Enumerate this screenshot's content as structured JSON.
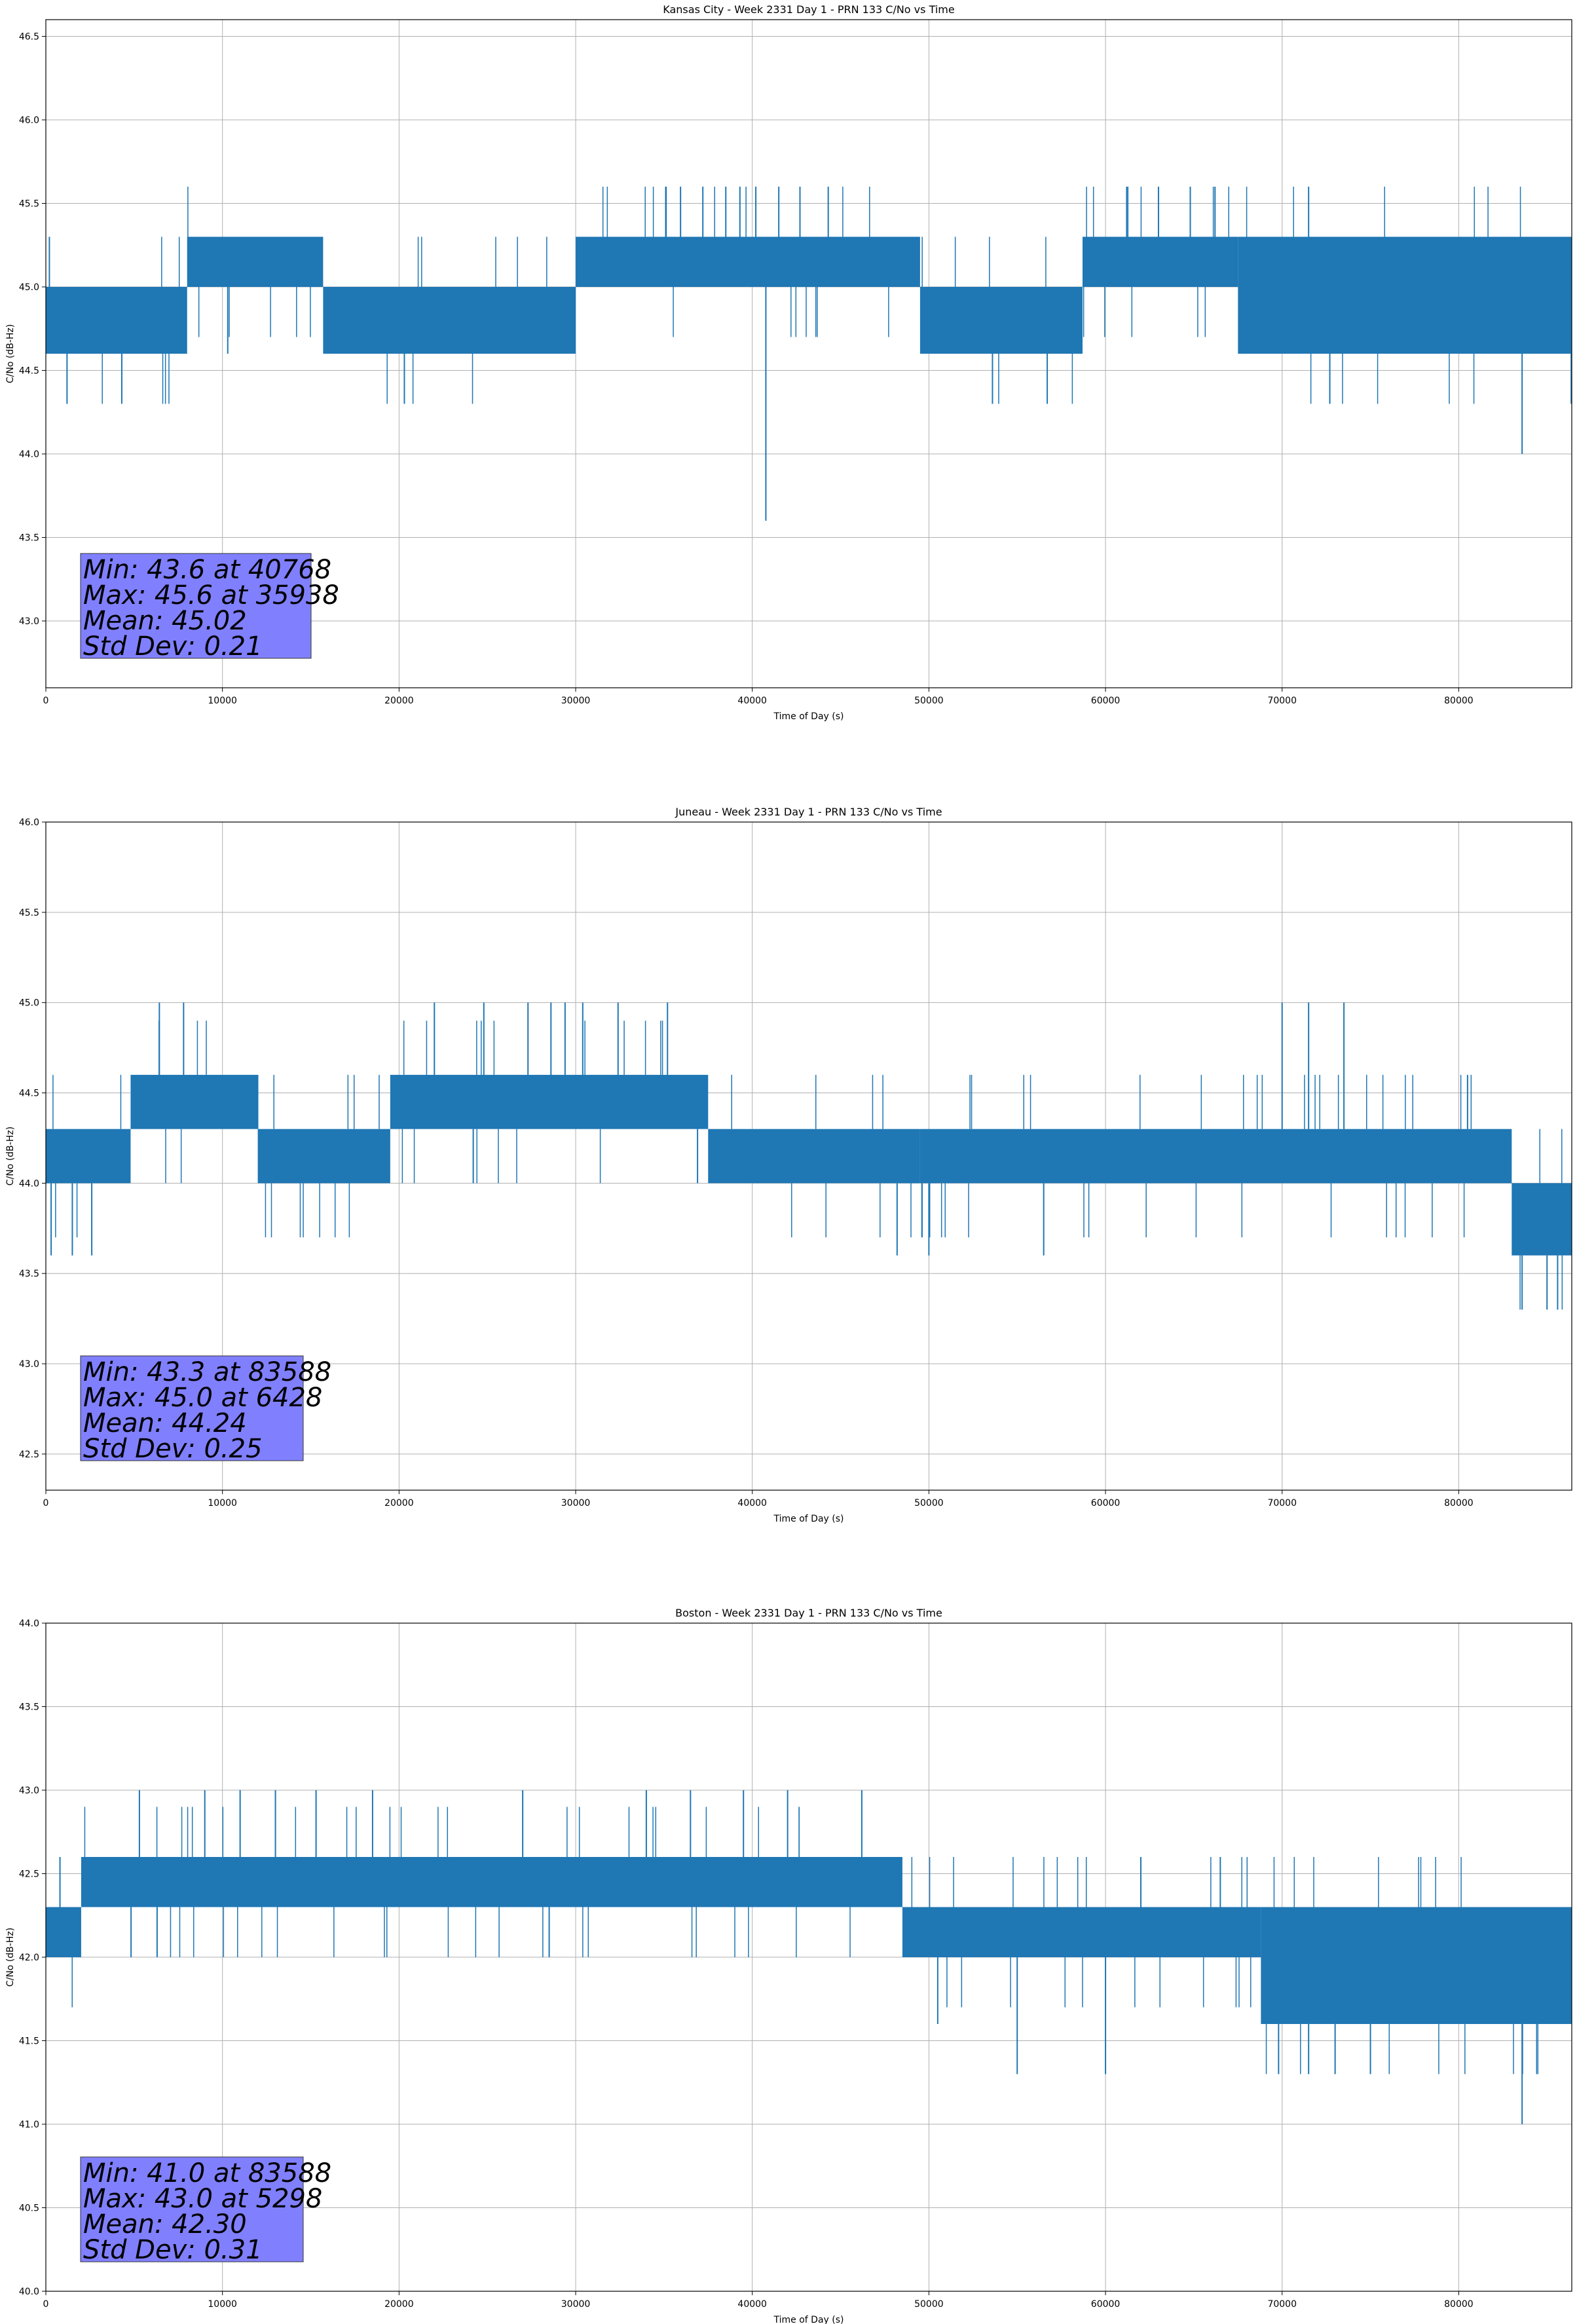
{
  "figure": {
    "background": "#ffffff",
    "line_color": "#1f77b4",
    "grid_color": "#b0b0b0",
    "stats_box_color": "#8080ff"
  },
  "chart_data": [
    {
      "type": "line",
      "title": "Kansas City - Week 2331 Day 1 - PRN 133 C/No vs Time",
      "xlabel": "Time of Day (s)",
      "ylabel": "C/No (dB-Hz)",
      "xlim": [
        0,
        86400
      ],
      "ylim": [
        42.6,
        46.6
      ],
      "xticks": [
        0,
        10000,
        20000,
        30000,
        40000,
        50000,
        60000,
        70000,
        80000
      ],
      "xtick_labels": [
        "0",
        "10000",
        "20000",
        "30000",
        "40000",
        "50000",
        "60000",
        "70000",
        "80000"
      ],
      "yticks": [
        43.0,
        43.5,
        44.0,
        44.5,
        45.0,
        45.5,
        46.0,
        46.5
      ],
      "ytick_labels": [
        "43.0",
        "43.5",
        "44.0",
        "44.5",
        "45.0",
        "45.5",
        "46.0",
        "46.5"
      ],
      "grid": true,
      "series": [
        {
          "segments": [
            {
              "x": [
                0,
                8000
              ],
              "lo": 44.6,
              "hi": 45.0
            },
            {
              "x": [
                8000,
                15700
              ],
              "lo": 45.0,
              "hi": 45.3
            },
            {
              "x": [
                15700,
                30000
              ],
              "lo": 44.6,
              "hi": 45.0
            },
            {
              "x": [
                30000,
                49500
              ],
              "lo": 45.0,
              "hi": 45.3
            },
            {
              "x": [
                49500,
                58700
              ],
              "lo": 44.6,
              "hi": 45.0
            },
            {
              "x": [
                58700,
                67500
              ],
              "lo": 45.0,
              "hi": 45.3
            },
            {
              "x": [
                67500,
                86400
              ],
              "lo": 44.6,
              "hi": 45.3
            }
          ],
          "spikes": [
            {
              "x": 200,
              "y": 45.3
            },
            {
              "x": 1200,
              "y": 44.3
            },
            {
              "x": 4300,
              "y": 44.3
            },
            {
              "x": 10300,
              "y": 44.6
            },
            {
              "x": 20300,
              "y": 44.3
            },
            {
              "x": 35938,
              "y": 45.6
            },
            {
              "x": 37200,
              "y": 45.6
            },
            {
              "x": 38500,
              "y": 45.6
            },
            {
              "x": 39300,
              "y": 45.6
            },
            {
              "x": 40200,
              "y": 45.6
            },
            {
              "x": 40768,
              "y": 43.6
            },
            {
              "x": 41500,
              "y": 45.6
            },
            {
              "x": 42700,
              "y": 45.6
            },
            {
              "x": 44300,
              "y": 45.6
            },
            {
              "x": 53600,
              "y": 44.3
            },
            {
              "x": 56700,
              "y": 44.3
            },
            {
              "x": 61200,
              "y": 45.6
            },
            {
              "x": 63000,
              "y": 45.6
            },
            {
              "x": 64800,
              "y": 45.6
            },
            {
              "x": 66200,
              "y": 45.6
            },
            {
              "x": 71500,
              "y": 45.6
            },
            {
              "x": 72700,
              "y": 44.3
            },
            {
              "x": 83588,
              "y": 44.0
            }
          ]
        }
      ],
      "stats": [
        "Min: 43.6 at 40768",
        "Max: 45.6 at 35938",
        "Mean: 45.02",
        "Std Dev: 0.21"
      ]
    },
    {
      "type": "line",
      "title": "Juneau - Week 2331 Day 1 - PRN 133 C/No vs Time",
      "xlabel": "Time of Day (s)",
      "ylabel": "C/No (dB-Hz)",
      "xlim": [
        0,
        86400
      ],
      "ylim": [
        42.3,
        46.0
      ],
      "xticks": [
        0,
        10000,
        20000,
        30000,
        40000,
        50000,
        60000,
        70000,
        80000
      ],
      "xtick_labels": [
        "0",
        "10000",
        "20000",
        "30000",
        "40000",
        "50000",
        "60000",
        "70000",
        "80000"
      ],
      "yticks": [
        42.5,
        43.0,
        43.5,
        44.0,
        44.5,
        45.0,
        45.5,
        46.0
      ],
      "ytick_labels": [
        "42.5",
        "43.0",
        "43.5",
        "44.0",
        "44.5",
        "45.0",
        "45.5",
        "46.0"
      ],
      "grid": true,
      "series": [
        {
          "segments": [
            {
              "x": [
                0,
                4800
              ],
              "lo": 44.0,
              "hi": 44.3
            },
            {
              "x": [
                4800,
                12000
              ],
              "lo": 44.3,
              "hi": 44.6
            },
            {
              "x": [
                12000,
                19500
              ],
              "lo": 44.0,
              "hi": 44.3
            },
            {
              "x": [
                19500,
                37500
              ],
              "lo": 44.3,
              "hi": 44.6
            },
            {
              "x": [
                37500,
                49500
              ],
              "lo": 44.0,
              "hi": 44.3
            },
            {
              "x": [
                49500,
                83000
              ],
              "lo": 44.0,
              "hi": 44.3
            },
            {
              "x": [
                83000,
                86400
              ],
              "lo": 43.6,
              "hi": 44.0
            }
          ],
          "spikes": [
            {
              "x": 300,
              "y": 43.6
            },
            {
              "x": 1500,
              "y": 43.6
            },
            {
              "x": 2600,
              "y": 43.6
            },
            {
              "x": 6428,
              "y": 45.0
            },
            {
              "x": 7800,
              "y": 45.0
            },
            {
              "x": 22000,
              "y": 45.0
            },
            {
              "x": 24200,
              "y": 44.0
            },
            {
              "x": 24800,
              "y": 45.0
            },
            {
              "x": 27300,
              "y": 45.0
            },
            {
              "x": 28600,
              "y": 45.0
            },
            {
              "x": 29400,
              "y": 45.0
            },
            {
              "x": 30400,
              "y": 45.0
            },
            {
              "x": 32400,
              "y": 45.0
            },
            {
              "x": 35200,
              "y": 45.0
            },
            {
              "x": 36900,
              "y": 44.0
            },
            {
              "x": 48200,
              "y": 43.6
            },
            {
              "x": 50000,
              "y": 43.6
            },
            {
              "x": 56500,
              "y": 43.6
            },
            {
              "x": 70000,
              "y": 45.0
            },
            {
              "x": 71500,
              "y": 45.0
            },
            {
              "x": 73500,
              "y": 45.0
            },
            {
              "x": 80500,
              "y": 44.6
            },
            {
              "x": 83588,
              "y": 43.3
            },
            {
              "x": 85000,
              "y": 43.3
            },
            {
              "x": 85600,
              "y": 43.3
            }
          ]
        }
      ],
      "stats": [
        "Min: 43.3 at 83588",
        "Max: 45.0 at 6428",
        "Mean: 44.24",
        "Std Dev: 0.25"
      ]
    },
    {
      "type": "line",
      "title": "Boston - Week 2331 Day 1 - PRN 133 C/No vs Time",
      "xlabel": "Time of Day (s)",
      "ylabel": "C/No (dB-Hz)",
      "xlim": [
        0,
        86400
      ],
      "ylim": [
        40.0,
        44.0
      ],
      "xticks": [
        0,
        10000,
        20000,
        30000,
        40000,
        50000,
        60000,
        70000,
        80000
      ],
      "xtick_labels": [
        "0",
        "10000",
        "20000",
        "30000",
        "40000",
        "50000",
        "60000",
        "70000",
        "80000"
      ],
      "yticks": [
        40.0,
        40.5,
        41.0,
        41.5,
        42.0,
        42.5,
        43.0,
        43.5,
        44.0
      ],
      "ytick_labels": [
        "40.0",
        "40.5",
        "41.0",
        "41.5",
        "42.0",
        "42.5",
        "43.0",
        "43.5",
        "44.0"
      ],
      "grid": true,
      "series": [
        {
          "segments": [
            {
              "x": [
                0,
                2000
              ],
              "lo": 42.0,
              "hi": 42.3
            },
            {
              "x": [
                2000,
                48500
              ],
              "lo": 42.3,
              "hi": 42.6
            },
            {
              "x": [
                48500,
                68800
              ],
              "lo": 42.0,
              "hi": 42.3
            },
            {
              "x": [
                68800,
                86400
              ],
              "lo": 41.6,
              "hi": 42.3
            }
          ],
          "spikes": [
            {
              "x": 800,
              "y": 42.6
            },
            {
              "x": 5298,
              "y": 43.0
            },
            {
              "x": 6300,
              "y": 42.0
            },
            {
              "x": 9000,
              "y": 43.0
            },
            {
              "x": 11000,
              "y": 43.0
            },
            {
              "x": 13000,
              "y": 43.0
            },
            {
              "x": 15300,
              "y": 43.0
            },
            {
              "x": 18500,
              "y": 43.0
            },
            {
              "x": 27000,
              "y": 43.0
            },
            {
              "x": 28500,
              "y": 42.0
            },
            {
              "x": 34000,
              "y": 43.0
            },
            {
              "x": 36500,
              "y": 43.0
            },
            {
              "x": 39500,
              "y": 43.0
            },
            {
              "x": 42000,
              "y": 43.0
            },
            {
              "x": 46200,
              "y": 43.0
            },
            {
              "x": 50500,
              "y": 41.6
            },
            {
              "x": 55000,
              "y": 41.3
            },
            {
              "x": 60000,
              "y": 41.3
            },
            {
              "x": 62000,
              "y": 42.6
            },
            {
              "x": 66500,
              "y": 42.6
            },
            {
              "x": 69800,
              "y": 41.3
            },
            {
              "x": 71500,
              "y": 41.3
            },
            {
              "x": 73000,
              "y": 41.3
            },
            {
              "x": 75000,
              "y": 41.3
            },
            {
              "x": 83588,
              "y": 41.0
            }
          ]
        }
      ],
      "stats": [
        "Min: 41.0 at 83588",
        "Max: 43.0 at 5298",
        "Mean: 42.30",
        "Std Dev: 0.31"
      ]
    }
  ]
}
